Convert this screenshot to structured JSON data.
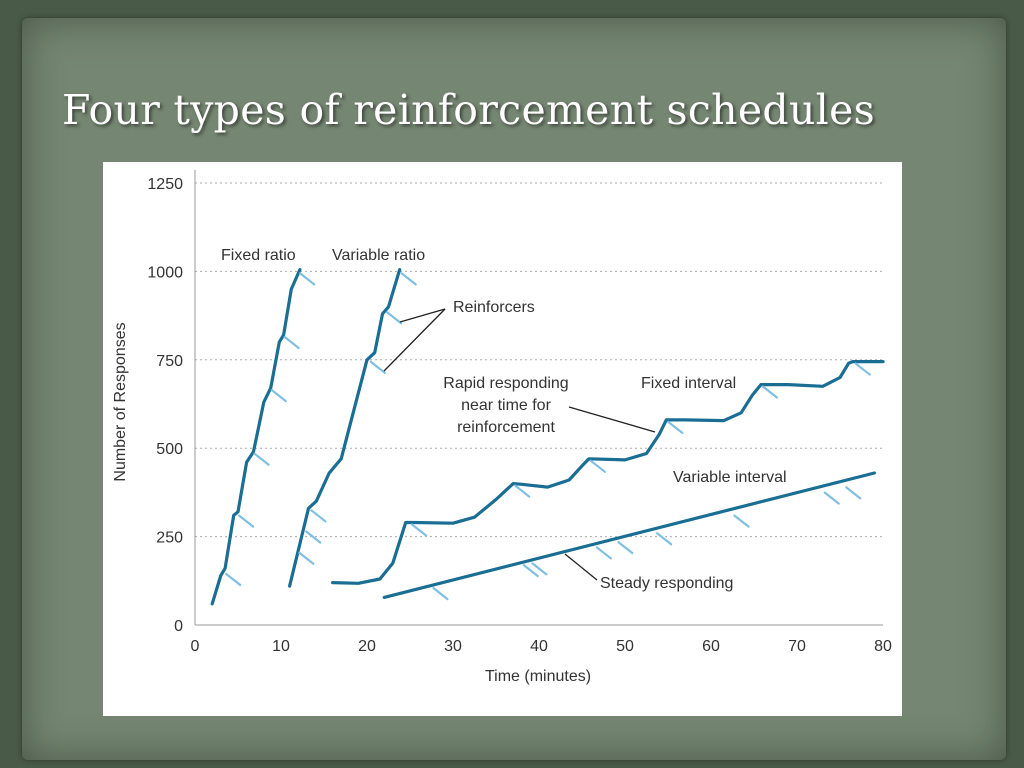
{
  "slide": {
    "title": "Four types of reinforcement schedules"
  },
  "chart_data": {
    "type": "line",
    "xlabel": "Time (minutes)",
    "ylabel": "Number of Responses",
    "xlim": [
      0,
      80
    ],
    "ylim": [
      0,
      1250
    ],
    "x_ticks": [
      "0",
      "10",
      "20",
      "30",
      "40",
      "50",
      "60",
      "70",
      "80"
    ],
    "y_ticks": [
      "0",
      "250",
      "500",
      "750",
      "1000",
      "1250"
    ],
    "grid": "horizontal dotted",
    "colors": {
      "line": "#1a6e94",
      "reinforcer": "#7fbfe3",
      "annotation": "#222222"
    },
    "series": [
      {
        "name": "Fixed ratio",
        "points": [
          [
            2,
            60
          ],
          [
            3,
            140
          ],
          [
            3.5,
            160
          ],
          [
            4.5,
            310
          ],
          [
            5,
            320
          ],
          [
            6,
            460
          ],
          [
            6.8,
            490
          ],
          [
            8,
            630
          ],
          [
            8.8,
            670
          ],
          [
            9.8,
            800
          ],
          [
            10.3,
            820
          ],
          [
            11.2,
            950
          ],
          [
            12.2,
            1005
          ]
        ],
        "reinforcers": [
          [
            3.4,
            150
          ],
          [
            4.9,
            315
          ],
          [
            6.7,
            490
          ],
          [
            8.7,
            670
          ],
          [
            10.2,
            820
          ],
          [
            12,
            1000
          ]
        ]
      },
      {
        "name": "Variable ratio",
        "points": [
          [
            11,
            110
          ],
          [
            12.2,
            230
          ],
          [
            13.2,
            330
          ],
          [
            14.1,
            350
          ],
          [
            15.6,
            430
          ],
          [
            17,
            470
          ],
          [
            18.6,
            620
          ],
          [
            20,
            750
          ],
          [
            20.9,
            770
          ],
          [
            21.8,
            880
          ],
          [
            22.5,
            900
          ],
          [
            23.8,
            1005
          ]
        ],
        "reinforcers": [
          [
            11.9,
            210
          ],
          [
            12.7,
            270
          ],
          [
            13.3,
            330
          ],
          [
            20.2,
            750
          ],
          [
            22.1,
            890
          ],
          [
            23.8,
            1000
          ]
        ]
      },
      {
        "name": "Fixed interval",
        "points": [
          [
            16,
            120
          ],
          [
            19,
            118
          ],
          [
            21.5,
            130
          ],
          [
            23,
            175
          ],
          [
            24.5,
            290
          ],
          [
            25.5,
            290
          ],
          [
            30,
            288
          ],
          [
            32.5,
            305
          ],
          [
            35,
            355
          ],
          [
            37,
            400
          ],
          [
            38,
            398
          ],
          [
            41,
            390
          ],
          [
            43.5,
            410
          ],
          [
            45,
            450
          ],
          [
            45.8,
            470
          ],
          [
            50,
            467
          ],
          [
            52.5,
            485
          ],
          [
            54,
            540
          ],
          [
            54.8,
            580
          ],
          [
            57,
            580
          ],
          [
            61.5,
            578
          ],
          [
            63.5,
            600
          ],
          [
            64.8,
            650
          ],
          [
            65.8,
            680
          ],
          [
            69,
            680
          ],
          [
            73,
            675
          ],
          [
            75,
            700
          ],
          [
            76,
            740
          ],
          [
            76.5,
            745
          ],
          [
            80,
            745
          ]
        ],
        "reinforcers": [
          [
            25,
            290
          ],
          [
            37,
            400
          ],
          [
            45.8,
            470
          ],
          [
            54.8,
            580
          ],
          [
            65.8,
            680
          ],
          [
            76.6,
            745
          ]
        ]
      },
      {
        "name": "Variable interval",
        "points": [
          [
            22,
            78
          ],
          [
            79,
            430
          ]
        ],
        "reinforcers": [
          [
            27.5,
            110
          ],
          [
            38,
            175
          ],
          [
            39,
            180
          ],
          [
            46.5,
            225
          ],
          [
            49,
            240
          ],
          [
            53.5,
            265
          ],
          [
            62.5,
            315
          ],
          [
            73,
            380
          ],
          [
            75.5,
            395
          ]
        ]
      }
    ],
    "annotations": {
      "reinforcers": "Reinforcers",
      "rapid_line1": "Rapid responding",
      "rapid_line2": "near time for",
      "rapid_line3": "reinforcement",
      "steady": "Steady responding"
    }
  }
}
